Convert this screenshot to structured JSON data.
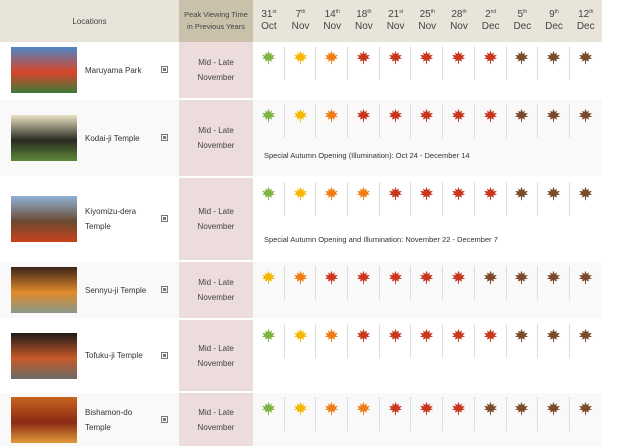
{
  "header": {
    "locations": "Locations",
    "peak_line1": "Peak Viewing Time",
    "peak_line2": "in Previous Years",
    "dates": [
      {
        "day": "31",
        "sup": "st",
        "month": "Oct"
      },
      {
        "day": "7",
        "sup": "th",
        "month": "Nov"
      },
      {
        "day": "14",
        "sup": "th",
        "month": "Nov"
      },
      {
        "day": "18",
        "sup": "th",
        "month": "Nov"
      },
      {
        "day": "21",
        "sup": "st",
        "month": "Nov"
      },
      {
        "day": "25",
        "sup": "th",
        "month": "Nov"
      },
      {
        "day": "28",
        "sup": "th",
        "month": "Nov"
      },
      {
        "day": "2",
        "sup": "nd",
        "month": "Dec"
      },
      {
        "day": "5",
        "sup": "th",
        "month": "Dec"
      },
      {
        "day": "9",
        "sup": "th",
        "month": "Dec"
      },
      {
        "day": "12",
        "sup": "th",
        "month": "Dec"
      }
    ]
  },
  "leaf_colors": {
    "G": "#7cb342",
    "Y": "#f5b800",
    "O": "#ef7d14",
    "R": "#c9381e",
    "B": "#7a4a2a"
  },
  "rows": [
    {
      "name": "Maruyama Park",
      "peak_line1": "Mid - Late",
      "peak_line2": "November",
      "stages": [
        "G",
        "Y",
        "O",
        "R",
        "R",
        "R",
        "R",
        "R",
        "B",
        "B",
        "B"
      ],
      "note": "",
      "thumb": [
        "#4d86c4",
        "#d8452a",
        "#3d7a3a"
      ]
    },
    {
      "name": "Kodai-ji Temple",
      "peak_line1": "Mid - Late",
      "peak_line2": "November",
      "stages": [
        "G",
        "Y",
        "O",
        "R",
        "R",
        "R",
        "R",
        "R",
        "B",
        "B",
        "B"
      ],
      "note": "Special Autumn Opening (Illumination): Oct 24 - December 14",
      "thumb": [
        "#e9e2c4",
        "#2a2a22",
        "#5e8a3a"
      ]
    },
    {
      "name": "Kiyomizu-dera Temple",
      "peak_line1": "Mid - Late",
      "peak_line2": "November",
      "stages": [
        "G",
        "Y",
        "O",
        "O",
        "R",
        "R",
        "R",
        "R",
        "B",
        "B",
        "B"
      ],
      "note": "Special Autumn Opening and Illumination: November 22 - December 7",
      "thumb": [
        "#8fb3d8",
        "#6b4a32",
        "#c8421c"
      ]
    },
    {
      "name": "Sennyu-ji Temple",
      "peak_line1": "Mid - Late",
      "peak_line2": "November",
      "stages": [
        "Y",
        "O",
        "R",
        "R",
        "R",
        "R",
        "R",
        "B",
        "B",
        "B",
        "B"
      ],
      "note": "",
      "thumb": [
        "#3a2418",
        "#e08a2a",
        "#8a9a8a"
      ]
    },
    {
      "name": "Tofuku-ji Temple",
      "peak_line1": "Mid - Late",
      "peak_line2": "November",
      "stages": [
        "G",
        "Y",
        "O",
        "R",
        "R",
        "R",
        "R",
        "R",
        "B",
        "B",
        "B"
      ],
      "note": "",
      "thumb": [
        "#1e1a16",
        "#c85a2a",
        "#6a6a66"
      ]
    },
    {
      "name": "Bishamon-do Temple",
      "peak_line1": "Mid - Late",
      "peak_line2": "November",
      "stages": [
        "G",
        "Y",
        "O",
        "O",
        "R",
        "R",
        "R",
        "B",
        "B",
        "B",
        "B"
      ],
      "note": "",
      "thumb": [
        "#c8641e",
        "#8a2a14",
        "#e09a3a"
      ]
    }
  ]
}
